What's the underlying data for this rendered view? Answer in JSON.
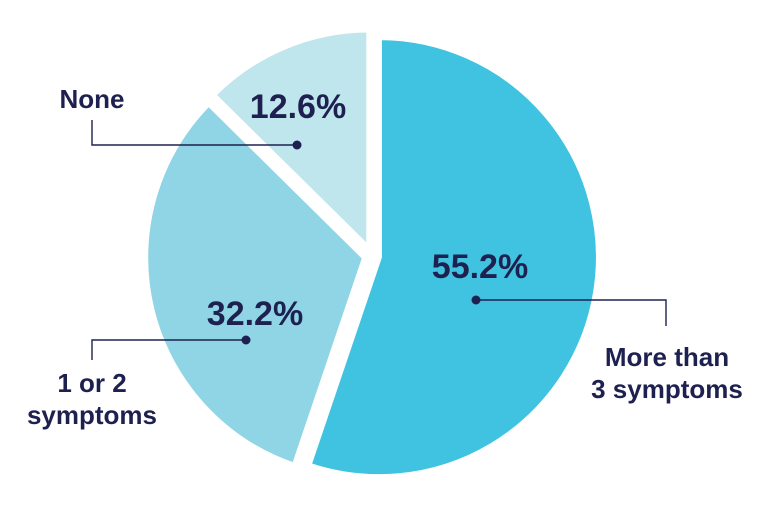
{
  "chart_data": {
    "type": "pie",
    "title": "",
    "slices": [
      {
        "label_lines": [
          "More than",
          "3 symptoms"
        ],
        "value": 55.2,
        "value_label": "55.2%",
        "color": "#3fc3e0"
      },
      {
        "label_lines": [
          "1 or 2",
          "symptoms"
        ],
        "value": 32.2,
        "value_label": "32.2%",
        "color": "#8fd5e5"
      },
      {
        "label_lines": [
          "None"
        ],
        "value": 12.6,
        "value_label": "12.6%",
        "color": "#bfe5ed"
      }
    ],
    "legend": "none",
    "text_color": "#1e2150"
  }
}
